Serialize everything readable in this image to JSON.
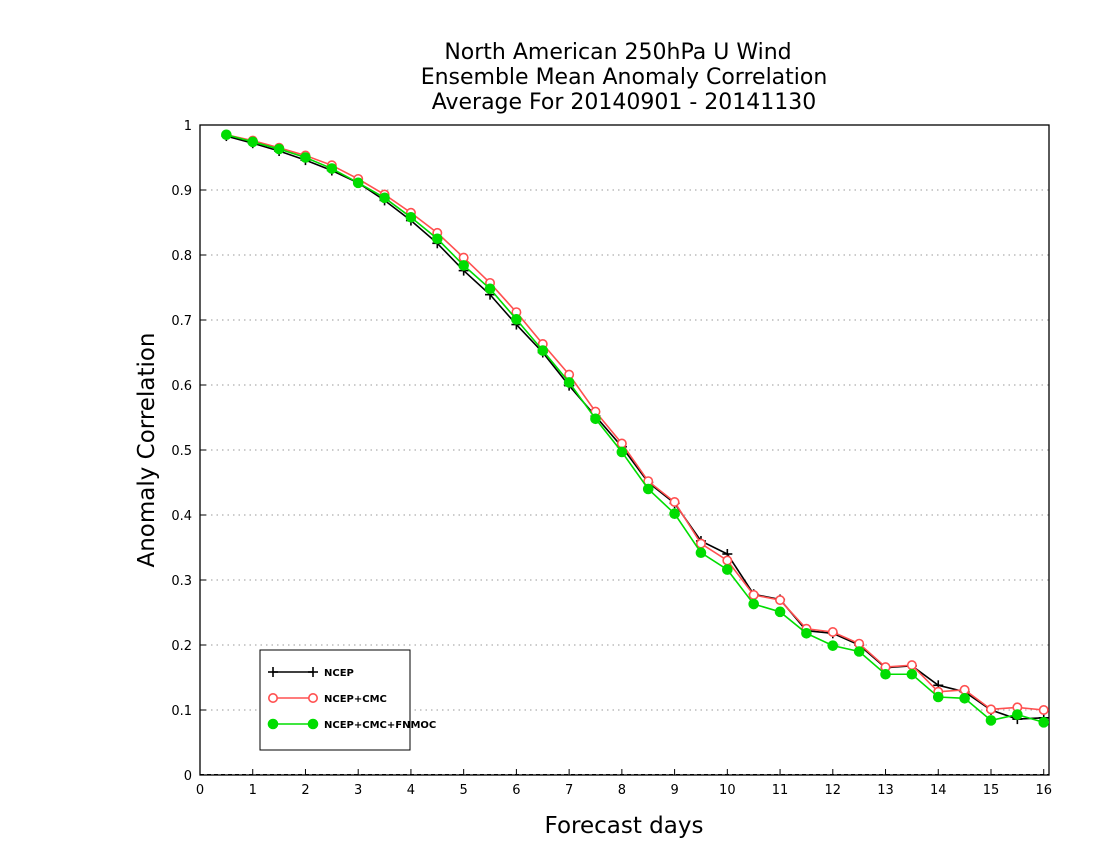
{
  "chart_data": {
    "type": "line",
    "title_lines": [
      "North American 250hPa U Wind",
      "Ensemble Mean Anomaly Correlation",
      "Average For 20140901 - 20141130"
    ],
    "xlabel": "Forecast days",
    "ylabel": "Anomaly Correlation",
    "xlim": [
      0,
      16.1
    ],
    "ylim": [
      0,
      1
    ],
    "xticks": [
      0,
      1,
      2,
      3,
      4,
      5,
      6,
      7,
      8,
      9,
      10,
      11,
      12,
      13,
      14,
      15,
      16
    ],
    "xtick_labels": [
      "0",
      "1",
      "2",
      "3",
      "4",
      "5",
      "6",
      "7",
      "8",
      "9",
      "10",
      "11",
      "12",
      "13",
      "14",
      "15",
      "16"
    ],
    "yticks": [
      0,
      0.1,
      0.2,
      0.3,
      0.4,
      0.5,
      0.6,
      0.7,
      0.8,
      0.9,
      1
    ],
    "ytick_labels": [
      "0",
      "0.1",
      "0.2",
      "0.3",
      "0.4",
      "0.5",
      "0.6",
      "0.7",
      "0.8",
      "0.9",
      "1"
    ],
    "grid": "horizontal dotted",
    "legend_position": "bottom-left",
    "x": [
      0.5,
      1,
      1.5,
      2,
      2.5,
      3,
      3.5,
      4,
      4.5,
      5,
      5.5,
      6,
      6.5,
      7,
      7.5,
      8,
      8.5,
      9,
      9.5,
      10,
      10.5,
      11,
      11.5,
      12,
      12.5,
      13,
      13.5,
      14,
      14.5,
      15,
      15.5,
      16
    ],
    "series": [
      {
        "name": "NCEP",
        "color": "#000000",
        "marker": "plus",
        "values": [
          0.983,
          0.972,
          0.96,
          0.946,
          0.93,
          0.911,
          0.884,
          0.853,
          0.818,
          0.776,
          0.739,
          0.693,
          0.65,
          0.599,
          0.552,
          0.505,
          0.45,
          0.418,
          0.36,
          0.34,
          0.278,
          0.27,
          0.222,
          0.218,
          0.2,
          0.165,
          0.168,
          0.138,
          0.128,
          0.1,
          0.086,
          0.088
        ]
      },
      {
        "name": "NCEP+CMC",
        "color": "#ff5050",
        "marker": "open-circle",
        "values": [
          0.985,
          0.976,
          0.965,
          0.953,
          0.938,
          0.917,
          0.893,
          0.865,
          0.834,
          0.796,
          0.757,
          0.712,
          0.663,
          0.616,
          0.559,
          0.51,
          0.452,
          0.42,
          0.356,
          0.33,
          0.277,
          0.269,
          0.225,
          0.22,
          0.202,
          0.166,
          0.169,
          0.128,
          0.131,
          0.101,
          0.104,
          0.1
        ]
      },
      {
        "name": "NCEP+CMC+FNMOC",
        "color": "#00dd00",
        "marker": "filled-circle",
        "values": [
          0.985,
          0.974,
          0.963,
          0.95,
          0.933,
          0.911,
          0.888,
          0.858,
          0.825,
          0.784,
          0.748,
          0.701,
          0.653,
          0.604,
          0.548,
          0.497,
          0.44,
          0.402,
          0.342,
          0.316,
          0.263,
          0.251,
          0.218,
          0.199,
          0.19,
          0.155,
          0.155,
          0.12,
          0.118,
          0.084,
          0.093,
          0.081
        ]
      }
    ]
  }
}
